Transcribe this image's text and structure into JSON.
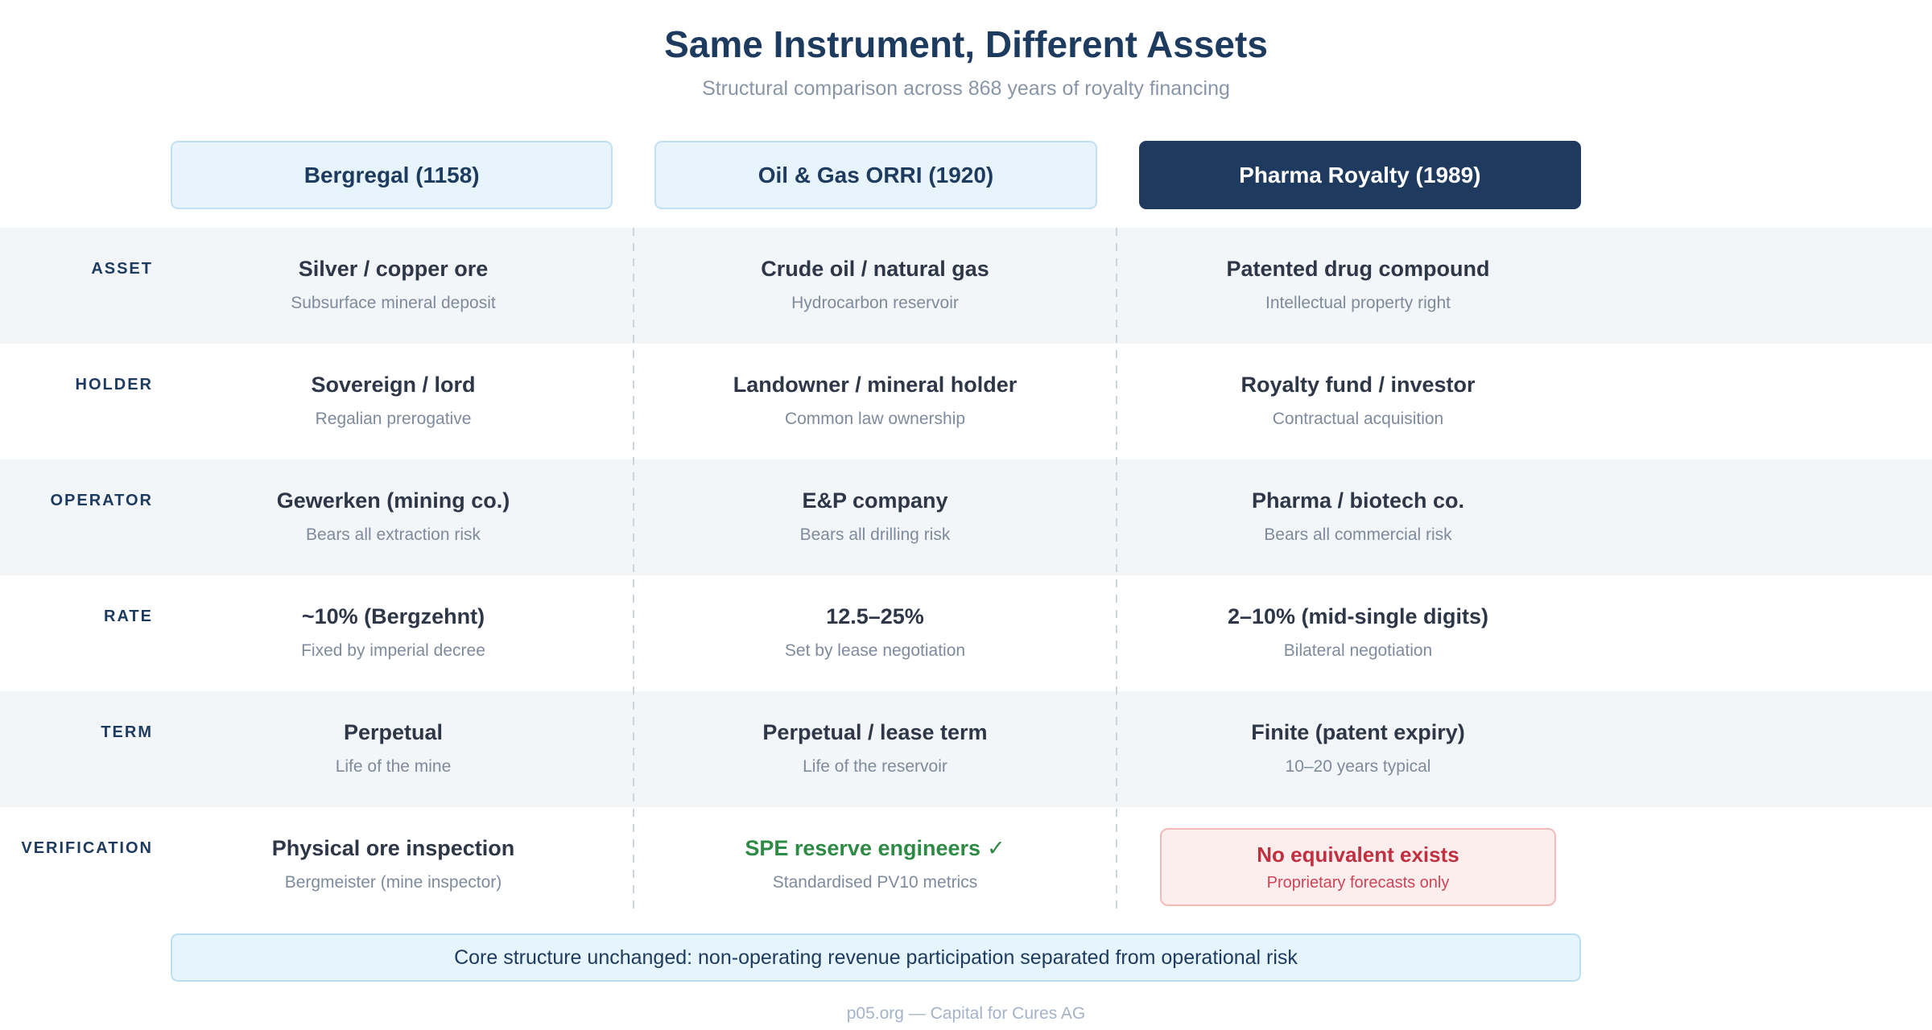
{
  "header": {
    "title": "Same Instrument, Different Assets",
    "subtitle": "Structural comparison across 868 years of royalty financing"
  },
  "columns": [
    {
      "label": "Bergregal (1158)",
      "style": "light"
    },
    {
      "label": "Oil & Gas ORRI (1920)",
      "style": "light"
    },
    {
      "label": "Pharma Royalty (1989)",
      "style": "dark"
    }
  ],
  "rows": [
    {
      "label": "ASSET",
      "cells": [
        {
          "main": "Silver / copper ore",
          "sub": "Subsurface mineral deposit"
        },
        {
          "main": "Crude oil / natural gas",
          "sub": "Hydrocarbon reservoir"
        },
        {
          "main": "Patented drug compound",
          "sub": "Intellectual property right"
        }
      ]
    },
    {
      "label": "HOLDER",
      "cells": [
        {
          "main": "Sovereign / lord",
          "sub": "Regalian prerogative"
        },
        {
          "main": "Landowner / mineral holder",
          "sub": "Common law ownership"
        },
        {
          "main": "Royalty fund / investor",
          "sub": "Contractual acquisition"
        }
      ]
    },
    {
      "label": "OPERATOR",
      "cells": [
        {
          "main": "Gewerken (mining co.)",
          "sub": "Bears all extraction risk"
        },
        {
          "main": "E&P company",
          "sub": "Bears all drilling risk"
        },
        {
          "main": "Pharma / biotech co.",
          "sub": "Bears all commercial risk"
        }
      ]
    },
    {
      "label": "RATE",
      "cells": [
        {
          "main": "~10% (Bergzehnt)",
          "sub": "Fixed by imperial decree"
        },
        {
          "main": "12.5–25%",
          "sub": "Set by lease negotiation"
        },
        {
          "main": "2–10% (mid-single digits)",
          "sub": "Bilateral negotiation"
        }
      ]
    },
    {
      "label": "TERM",
      "cells": [
        {
          "main": "Perpetual",
          "sub": "Life of the mine"
        },
        {
          "main": "Perpetual / lease term",
          "sub": "Life of the reservoir"
        },
        {
          "main": "Finite (patent expiry)",
          "sub": "10–20 years typical"
        }
      ]
    },
    {
      "label": "VERIFICATION",
      "cells": [
        {
          "main": "Physical ore inspection",
          "sub": "Bergmeister (mine inspector)"
        },
        {
          "main": "SPE reserve engineers",
          "check": "✓",
          "sub": "Standardised PV10 metrics",
          "variant": "green"
        },
        {
          "main": "No equivalent exists",
          "sub": "Proprietary forecasts only",
          "variant": "alert"
        }
      ]
    }
  ],
  "footer": {
    "note": "Core structure unchanged: non-operating revenue participation separated from operational risk",
    "credit": "p05.org — Capital for Cures AG"
  },
  "colors": {
    "navy": "#1d3a5f",
    "dark_card_bg": "#1e3a5f",
    "light_card_bg": "#e8f4fc",
    "light_card_border": "#c2e0f2",
    "row_band_bg": "#f3f6f9",
    "cell_main_text": "#2d3748",
    "cell_sub_text": "#7e8b9c",
    "green_text": "#2e8b45",
    "alert_bg": "#fdeeee",
    "alert_border": "#f3bab7",
    "alert_title": "#c13040",
    "alert_sub": "#cf4456",
    "divider": "#ccd6de",
    "note_bg": "#e6f4fc",
    "note_border": "#badff1",
    "credit_text": "#a4b4c6"
  }
}
